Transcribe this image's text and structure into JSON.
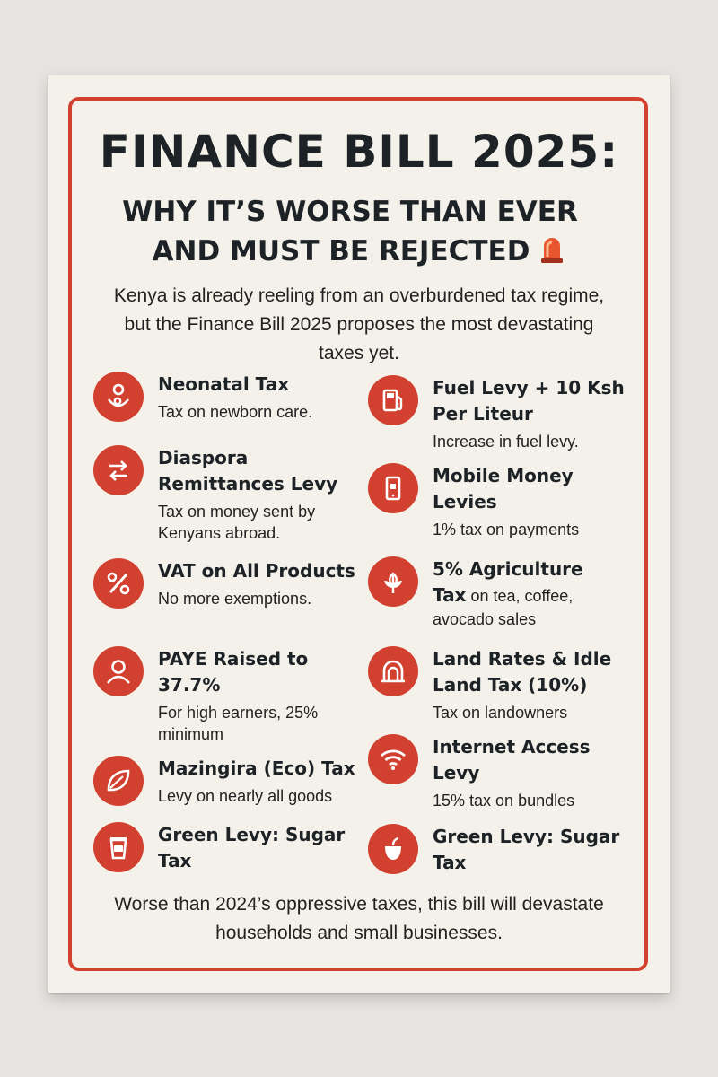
{
  "poster": {
    "title": "FINANCE BILL 2025:",
    "subtitle_line1": "WHY IT’S WORSE THAN EVER",
    "subtitle_line2": "AND MUST BE REJECTED",
    "intro": "Kenya is already reeling from an overburdened tax regime, but the Finance Bill 2025 proposes the most devastating taxes yet.",
    "footer": "Worse than 2024’s oppressive taxes, this bill will devastate households and small businesses.",
    "accent_color": "#d2402f"
  },
  "left_items": [
    {
      "title": "Neonatal Tax",
      "desc": "Tax on newborn care.",
      "icon": "baby-icon"
    },
    {
      "title": "Diaspora Remittances Levy",
      "desc": "Tax on money sent by Kenyans abroad.",
      "icon": "transfer-arrows-icon"
    },
    {
      "title": "VAT on All Products",
      "desc": "No more exemptions.",
      "icon": "percent-icon"
    },
    {
      "title": "PAYE Raised to 37.7%",
      "desc": "For high earners, 25% minimum",
      "icon": "person-icon"
    },
    {
      "title": "Mazingira (Eco) Tax",
      "desc": "Levy on nearly all goods",
      "icon": "leaf-icon"
    },
    {
      "title": "Green Levy: Sugar Tax",
      "desc": "",
      "icon": "cup-icon"
    }
  ],
  "right_items": [
    {
      "title": "Fuel Levy + 10 Ksh Per Liteur",
      "desc": "Increase in fuel levy.",
      "icon": "fuel-pump-icon"
    },
    {
      "title": "Mobile Money Levies",
      "desc": "1% tax on payments",
      "icon": "phone-icon"
    },
    {
      "title": "5% Agriculture",
      "desc_bold": "Tax",
      "desc": "on tea, coffee, avocado sales",
      "icon": "plant-icon"
    },
    {
      "title": "Land Rates & Idle Land Tax (10%)",
      "desc": "Tax on landowners",
      "icon": "building-icon"
    },
    {
      "title": "Internet Access Levy",
      "desc": "15% tax on bundles",
      "icon": "wifi-icon"
    },
    {
      "title": "Green Levy: Sugar Tax",
      "desc": "",
      "icon": "apple-icon"
    }
  ]
}
